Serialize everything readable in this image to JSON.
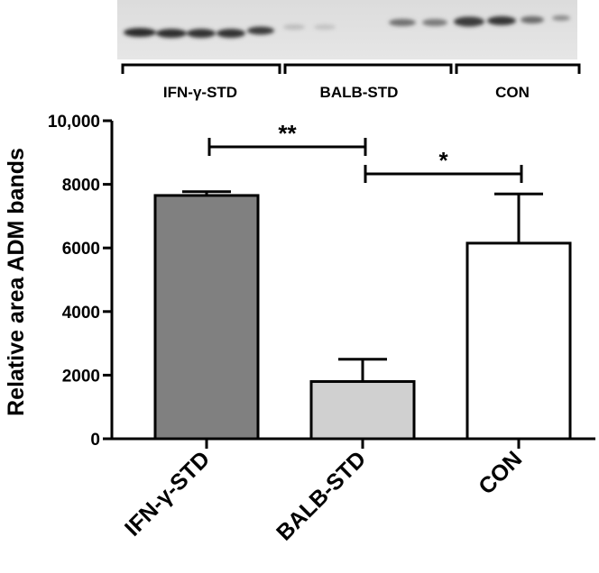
{
  "blot": {
    "group_labels": [
      "IFN-γ-STD",
      "BALB-STD",
      "CON"
    ]
  },
  "chart_data": {
    "type": "bar",
    "categories": [
      "IFN-γ-STD",
      "BALB-STD",
      "CON"
    ],
    "values": [
      7650,
      1800,
      6150
    ],
    "errors": [
      120,
      700,
      1550
    ],
    "ylabel": "Relative area ADM bands",
    "xlabel": "",
    "ylim": [
      0,
      10000
    ],
    "yticks": [
      0,
      2000,
      4000,
      6000,
      8000,
      10000
    ],
    "ytick_labels": [
      "0",
      "2000",
      "4000",
      "6000",
      "8000",
      "10,000"
    ],
    "bar_colors": [
      "#808080",
      "#d0d0d0",
      "#ffffff"
    ],
    "significance": [
      {
        "from": 0,
        "to": 1,
        "label": "**"
      },
      {
        "from": 1,
        "to": 2,
        "label": "*"
      }
    ],
    "grid": false,
    "legend": "none"
  }
}
